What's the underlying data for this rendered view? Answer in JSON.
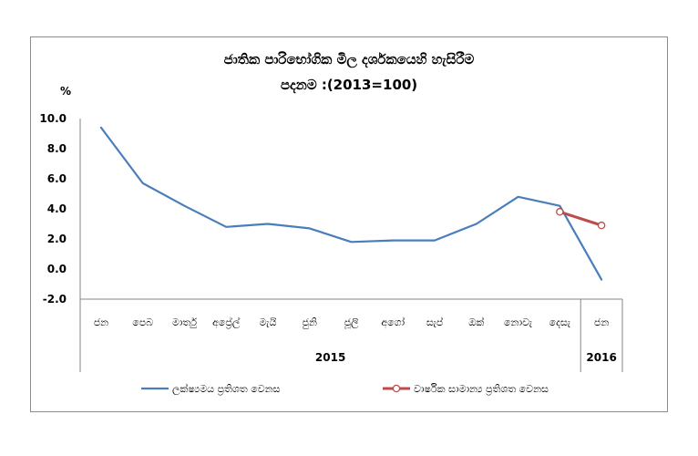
{
  "chart_data": {
    "type": "line",
    "title": "ජාතික පාරිභෝගික මිල දර්ශකයෙහි හැසිරීම",
    "subtitle": "පදනම :(2013=100)",
    "ylabel": "%",
    "ylim": [
      -2.0,
      10.0
    ],
    "yticks": [
      "10.0",
      "8.0",
      "6.0",
      "4.0",
      "2.0",
      "0.0",
      "-2.0"
    ],
    "categories": [
      "ජන",
      "පෙබ",
      "මාර්තු",
      "අප්‍රේල්",
      "මැයි",
      "ජුනි",
      "ජූලි",
      "අගෝ",
      "සැප්",
      "ඔක්",
      "නොවැ",
      "දෙසැ",
      "ජන"
    ],
    "years": [
      {
        "label": "2015",
        "span": 12
      },
      {
        "label": "2016",
        "span": 1
      }
    ],
    "grid": false,
    "legend_position": "bottom",
    "series": [
      {
        "name": "ලක්ෂ්‍යමය ප්‍රතිශත වෙනස",
        "color": "#4a7ebb",
        "marker": "none",
        "values": [
          9.4,
          5.7,
          4.2,
          2.8,
          3.0,
          2.7,
          1.8,
          1.9,
          1.9,
          3.0,
          4.8,
          4.2,
          -0.7
        ]
      },
      {
        "name": "වාර්ෂික සාමාන්‍ය ප්‍රතිශත වෙනස",
        "color": "#be4b48",
        "marker": "circle",
        "values": [
          null,
          null,
          null,
          null,
          null,
          null,
          null,
          null,
          null,
          null,
          null,
          3.8,
          2.9
        ]
      }
    ]
  }
}
